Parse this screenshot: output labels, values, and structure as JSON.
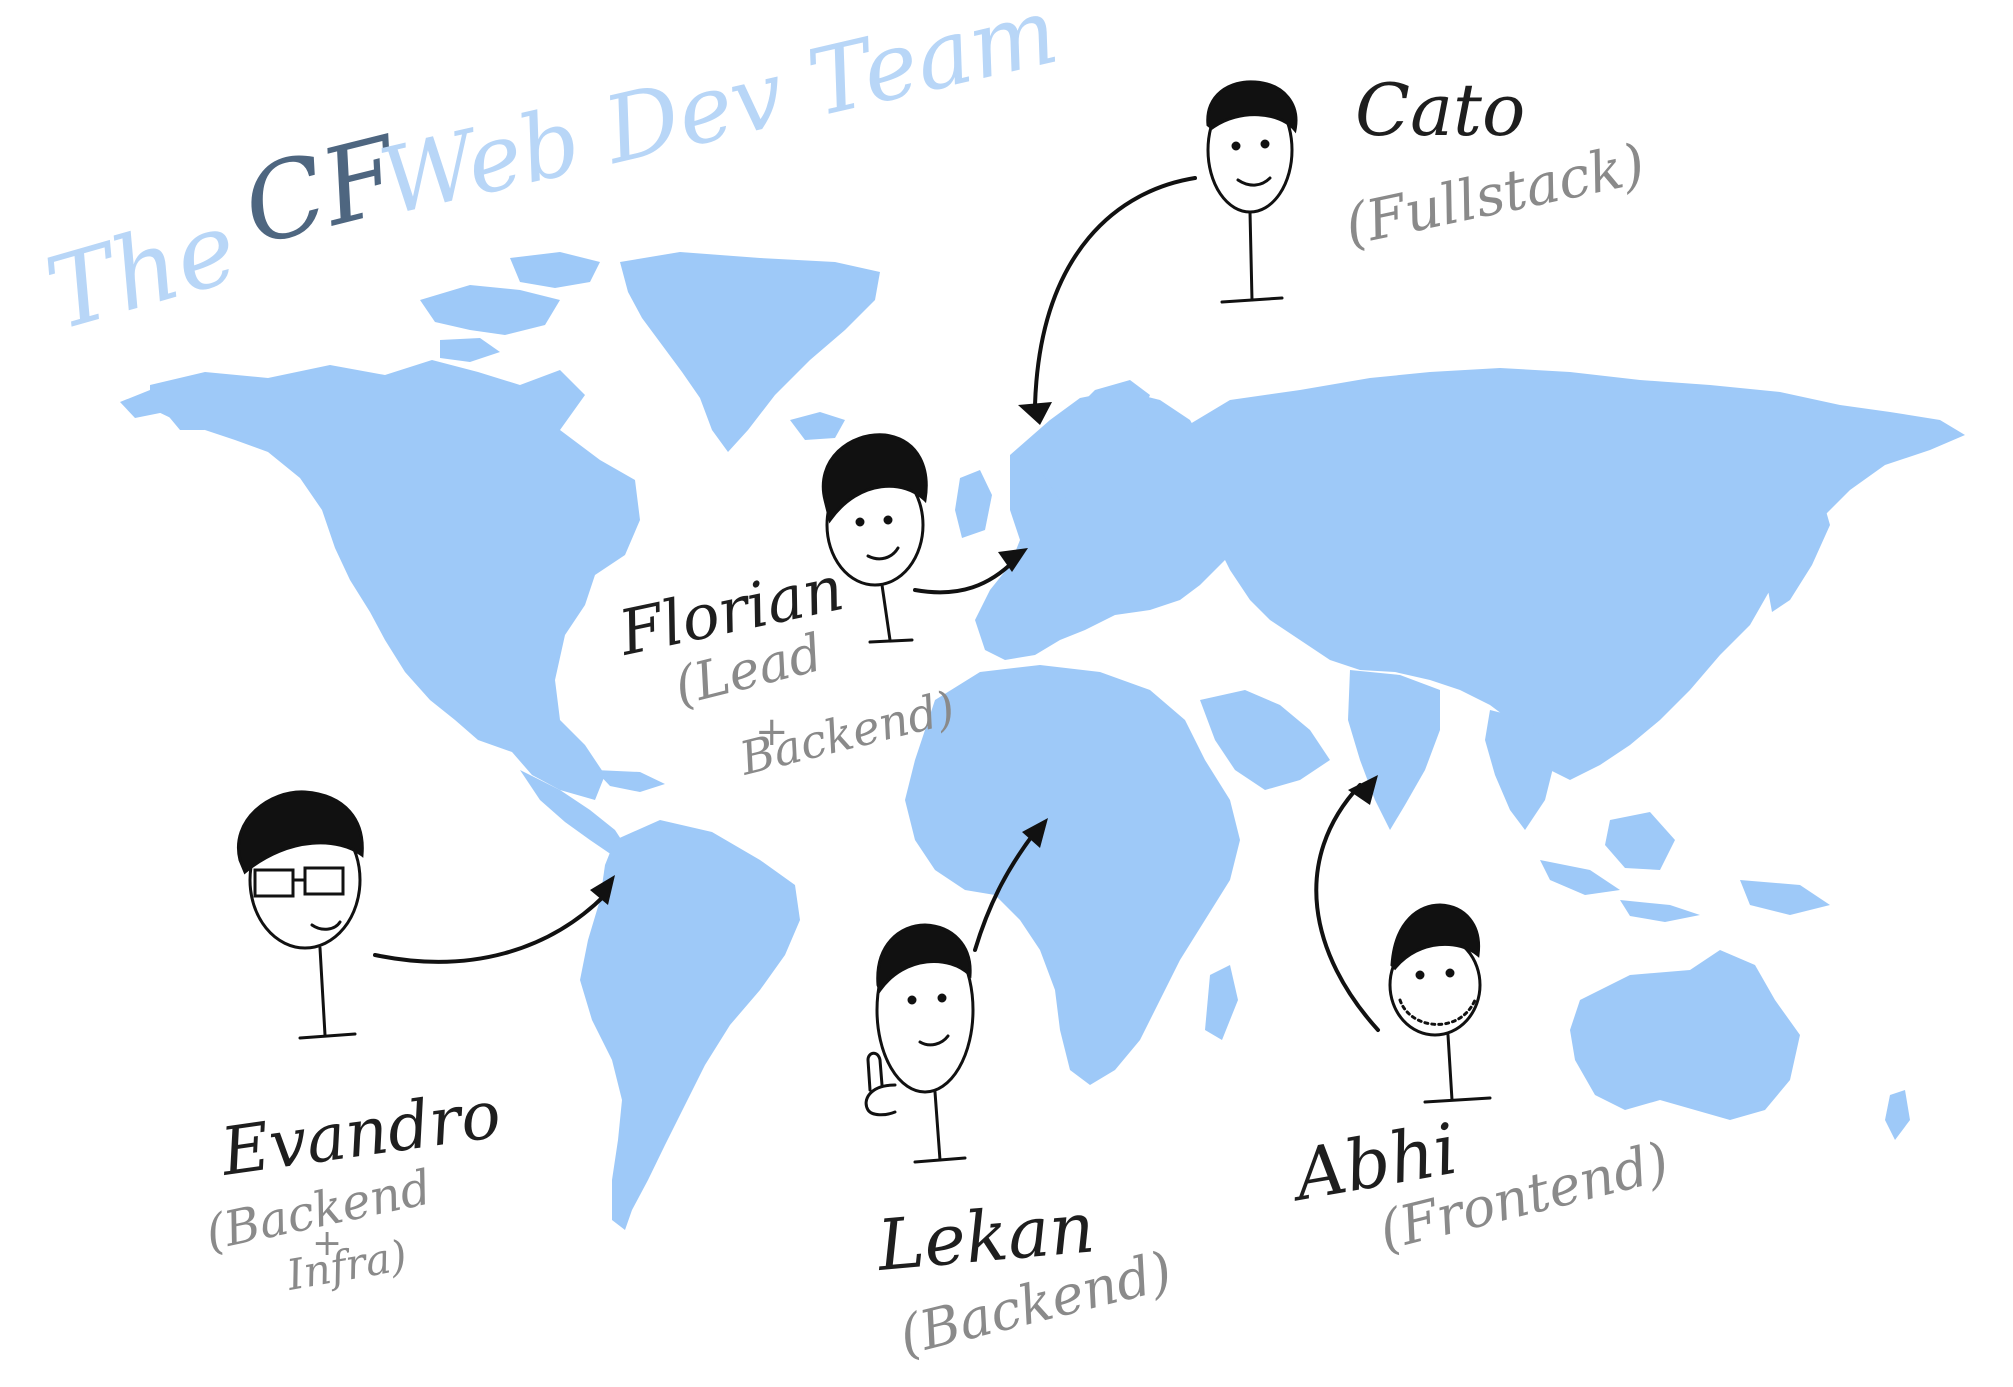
{
  "title": {
    "part1": "The",
    "part2": "CF",
    "part3": "Web Dev Team"
  },
  "map": {
    "land_color": "#9ec9f8",
    "background_color": "#ffffff"
  },
  "team": [
    {
      "id": "cato",
      "name": "Cato",
      "role": "(Fullstack)"
    },
    {
      "id": "florian",
      "name": "Florian",
      "role_line1": "(Lead",
      "role_line2": "+",
      "role_line3": "Backend)"
    },
    {
      "id": "evandro",
      "name": "Evandro",
      "role_line1": "(Backend",
      "role_line2": "+",
      "role_line3": "Infra)"
    },
    {
      "id": "lekan",
      "name": "Lekan",
      "role": "(Backend)"
    },
    {
      "id": "abhi",
      "name": "Abhi",
      "role": "(Frontend)"
    }
  ],
  "colors": {
    "title_light": "#b8d6f7",
    "title_dark": "#4e6680",
    "ink": "#1e1e1e",
    "role_ink": "#8a8a8a"
  }
}
